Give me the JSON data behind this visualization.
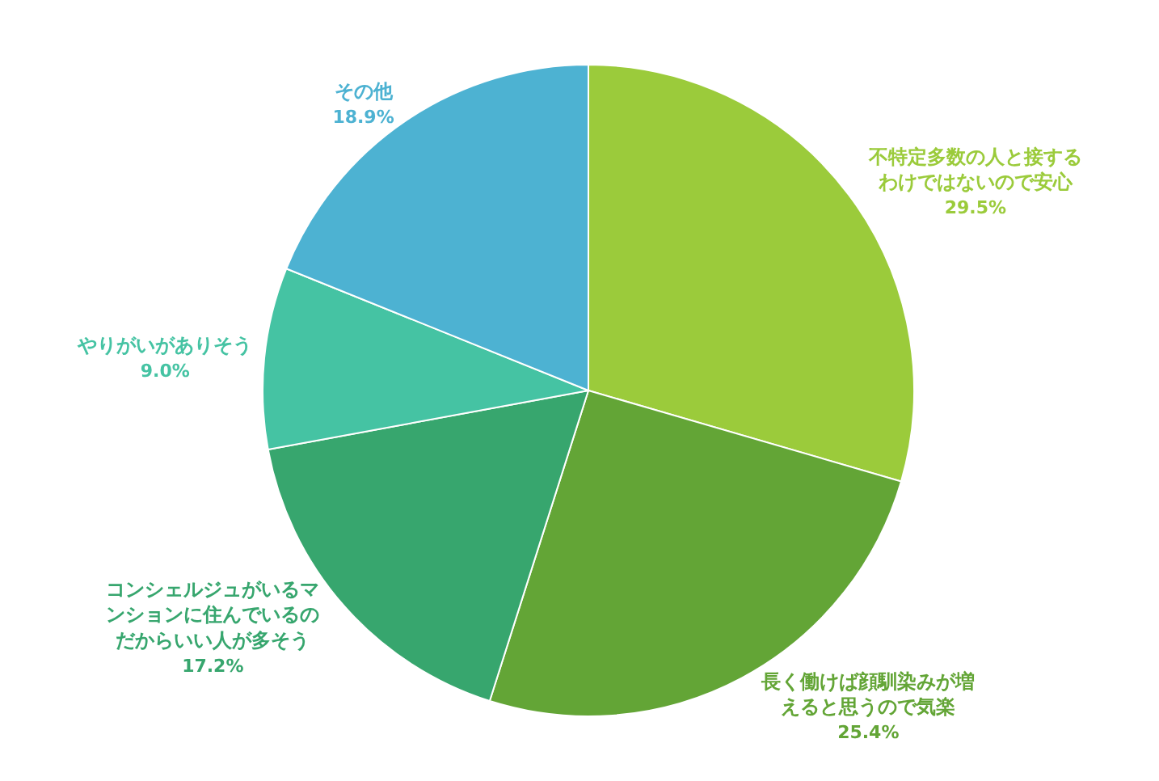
{
  "chart_data": {
    "type": "pie",
    "categories": [
      "不特定多数の人と接するわけではないので安心",
      "長く働けば顔馴染みが増えると思うので気楽",
      "コンシェルジュがいるマンションに住んでいるのだからいい人が多そう",
      "やりがいがありそう",
      "その他"
    ],
    "values": [
      29.5,
      25.4,
      17.2,
      9.0,
      18.9
    ],
    "value_labels": [
      "29.5%",
      "25.4%",
      "17.2%",
      "9.0%",
      "18.9%"
    ],
    "colors": [
      "#9bcb3b",
      "#63a536",
      "#37a66e",
      "#45c3a3",
      "#4db2d2"
    ],
    "legend": false
  }
}
